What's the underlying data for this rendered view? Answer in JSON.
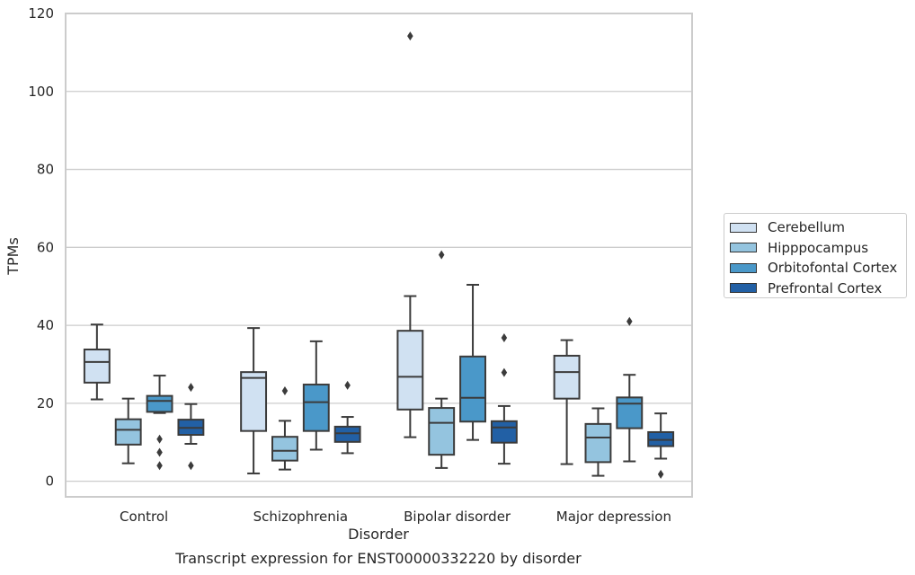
{
  "chart_data": {
    "type": "box",
    "title": "",
    "xlabel": "Disorder",
    "ylabel": "TPMs",
    "caption": "Transcript expression for ENST00000332220 by disorder",
    "ylim": [
      -4,
      120
    ],
    "yticks": [
      0,
      20,
      40,
      60,
      80,
      100,
      120
    ],
    "grid": "horizontal",
    "legend_position": "right",
    "categories": [
      "Control",
      "Schizophrenia",
      "Bipolar disorder",
      "Major depression"
    ],
    "series": [
      {
        "name": "Cerebellum",
        "color": "#d0e1f2",
        "boxes": [
          {
            "whisker_low": 21,
            "q1": 25.3,
            "median": 30.6,
            "q3": 33.8,
            "whisker_high": 40.2,
            "outliers": []
          },
          {
            "whisker_low": 2,
            "q1": 12.9,
            "median": 26.5,
            "q3": 28,
            "whisker_high": 39.3,
            "outliers": []
          },
          {
            "whisker_low": 11.3,
            "q1": 18.4,
            "median": 26.8,
            "q3": 38.6,
            "whisker_high": 47.5,
            "outliers": [
              114.2
            ]
          },
          {
            "whisker_low": 4.4,
            "q1": 21.2,
            "median": 28,
            "q3": 32.2,
            "whisker_high": 36.2,
            "outliers": []
          }
        ]
      },
      {
        "name": "Hipppocampus",
        "color": "#94c4df",
        "boxes": [
          {
            "whisker_low": 4.6,
            "q1": 9.4,
            "median": 13.2,
            "q3": 15.9,
            "whisker_high": 21.2,
            "outliers": []
          },
          {
            "whisker_low": 3,
            "q1": 5.3,
            "median": 7.8,
            "q3": 11.4,
            "whisker_high": 15.5,
            "outliers": [
              23.2
            ]
          },
          {
            "whisker_low": 3.4,
            "q1": 6.8,
            "median": 15,
            "q3": 18.8,
            "whisker_high": 21.2,
            "outliers": [
              58.1
            ]
          },
          {
            "whisker_low": 1.4,
            "q1": 4.9,
            "median": 11.2,
            "q3": 14.7,
            "whisker_high": 18.7,
            "outliers": []
          }
        ]
      },
      {
        "name": "Orbitofontal Cortex",
        "color": "#4a98c9",
        "boxes": [
          {
            "whisker_low": 17.5,
            "q1": 17.8,
            "median": 20.6,
            "q3": 21.9,
            "whisker_high": 27.1,
            "outliers": [
              10.8,
              7.4,
              4
            ]
          },
          {
            "whisker_low": 8.1,
            "q1": 12.9,
            "median": 20.3,
            "q3": 24.8,
            "whisker_high": 35.9,
            "outliers": []
          },
          {
            "whisker_low": 10.6,
            "q1": 15.3,
            "median": 21.4,
            "q3": 32,
            "whisker_high": 50.4,
            "outliers": []
          },
          {
            "whisker_low": 5.1,
            "q1": 13.6,
            "median": 19.9,
            "q3": 21.5,
            "whisker_high": 27.3,
            "outliers": [
              41
            ]
          }
        ]
      },
      {
        "name": "Prefrontal Cortex",
        "color": "#2260a5",
        "boxes": [
          {
            "whisker_low": 9.6,
            "q1": 11.9,
            "median": 13.7,
            "q3": 15.8,
            "whisker_high": 19.8,
            "outliers": [
              24.1,
              4
            ]
          },
          {
            "whisker_low": 7.2,
            "q1": 10.1,
            "median": 12.3,
            "q3": 14,
            "whisker_high": 16.5,
            "outliers": [
              24.6
            ]
          },
          {
            "whisker_low": 4.5,
            "q1": 9.9,
            "median": 13.8,
            "q3": 15.4,
            "whisker_high": 19.3,
            "outliers": [
              36.8,
              27.9
            ]
          },
          {
            "whisker_low": 5.8,
            "q1": 9,
            "median": 10.6,
            "q3": 12.6,
            "whisker_high": 17.4,
            "outliers": [
              1.8
            ]
          }
        ]
      }
    ]
  }
}
